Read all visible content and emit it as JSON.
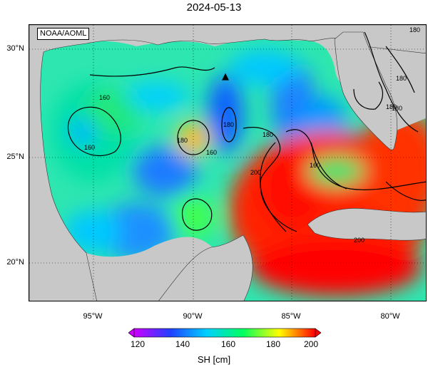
{
  "header": {
    "title": "2024-05-13"
  },
  "map": {
    "credit": "NOAA/AOML",
    "lat_ticks": [
      "30°N",
      "25°N",
      "20°N"
    ],
    "lon_ticks": [
      "95°W",
      "90°W",
      "85°W",
      "80°W"
    ],
    "lon_range": [
      -98,
      -78
    ],
    "lat_range": [
      18,
      31
    ],
    "land_color": "#c8c8c8",
    "gridlines": "dotted",
    "contour_labels": [
      "160",
      "160",
      "180",
      "180",
      "180",
      "160",
      "180",
      "180",
      "160",
      "200",
      "200",
      "180",
      "180"
    ],
    "marker": {
      "symbol": "▲",
      "lon": -88.5,
      "lat": 28.7
    }
  },
  "colorbar": {
    "tick_labels": [
      "120",
      "140",
      "160",
      "180",
      "200"
    ],
    "min": 120,
    "max": 200,
    "colors": [
      "#cc00ff",
      "#2040ff",
      "#00d0ff",
      "#00ff60",
      "#ffff00",
      "#ff0000"
    ],
    "label": "SH [cm]"
  }
}
